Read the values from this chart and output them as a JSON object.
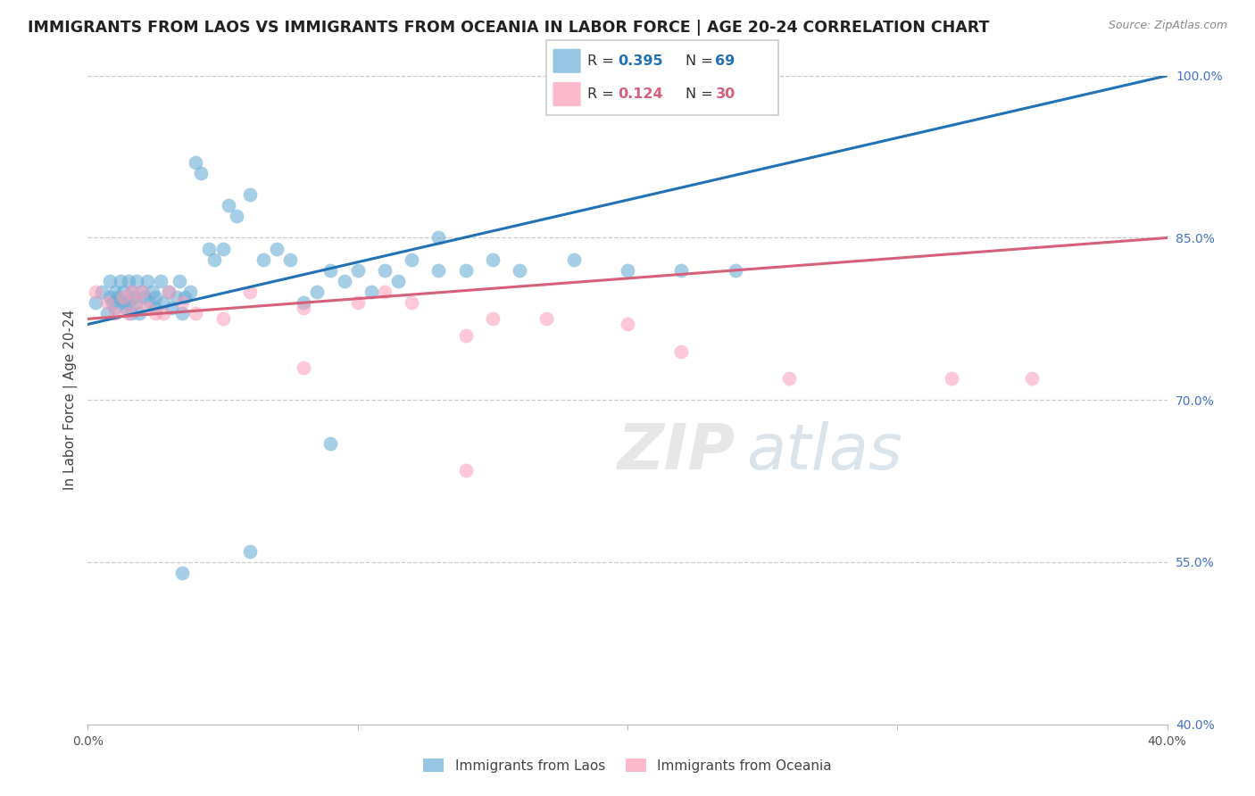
{
  "title": "IMMIGRANTS FROM LAOS VS IMMIGRANTS FROM OCEANIA IN LABOR FORCE | AGE 20-24 CORRELATION CHART",
  "source": "Source: ZipAtlas.com",
  "ylabel": "In Labor Force | Age 20-24",
  "xlim": [
    0.0,
    0.4
  ],
  "ylim": [
    0.4,
    1.0
  ],
  "yticks": [
    0.4,
    0.55,
    0.7,
    0.85,
    1.0
  ],
  "xticks": [
    0.0,
    0.1,
    0.2,
    0.3,
    0.4
  ],
  "xtick_labels": [
    "0.0%",
    "",
    "",
    "",
    "40.0%"
  ],
  "laos_R": 0.395,
  "laos_N": 69,
  "oceania_R": 0.124,
  "oceania_N": 30,
  "laos_color": "#6baed6",
  "oceania_color": "#fc9cb7",
  "laos_line_color": "#2171b5",
  "oceania_line_color": "#d6607a",
  "background_color": "#ffffff",
  "grid_color": "#cccccc",
  "laos_x": [
    0.003,
    0.005,
    0.007,
    0.008,
    0.008,
    0.009,
    0.01,
    0.01,
    0.011,
    0.012,
    0.013,
    0.013,
    0.014,
    0.015,
    0.015,
    0.016,
    0.016,
    0.017,
    0.018,
    0.018,
    0.019,
    0.02,
    0.021,
    0.022,
    0.023,
    0.024,
    0.025,
    0.025,
    0.027,
    0.028,
    0.03,
    0.031,
    0.033,
    0.034,
    0.035,
    0.036,
    0.038,
    0.04,
    0.042,
    0.045,
    0.047,
    0.05,
    0.052,
    0.055,
    0.06,
    0.065,
    0.07,
    0.075,
    0.08,
    0.085,
    0.09,
    0.095,
    0.1,
    0.105,
    0.11,
    0.115,
    0.12,
    0.13,
    0.14,
    0.15,
    0.16,
    0.18,
    0.2,
    0.22,
    0.24,
    0.13,
    0.09,
    0.06,
    0.035
  ],
  "laos_y": [
    0.79,
    0.8,
    0.78,
    0.795,
    0.81,
    0.79,
    0.8,
    0.785,
    0.795,
    0.81,
    0.79,
    0.8,
    0.785,
    0.81,
    0.79,
    0.8,
    0.78,
    0.795,
    0.81,
    0.79,
    0.78,
    0.8,
    0.795,
    0.81,
    0.79,
    0.8,
    0.785,
    0.795,
    0.81,
    0.79,
    0.8,
    0.785,
    0.795,
    0.81,
    0.78,
    0.795,
    0.8,
    0.92,
    0.91,
    0.84,
    0.83,
    0.84,
    0.88,
    0.87,
    0.89,
    0.83,
    0.84,
    0.83,
    0.79,
    0.8,
    0.82,
    0.81,
    0.82,
    0.8,
    0.82,
    0.81,
    0.83,
    0.82,
    0.82,
    0.83,
    0.82,
    0.83,
    0.82,
    0.82,
    0.82,
    0.85,
    0.66,
    0.56,
    0.54
  ],
  "oceania_x": [
    0.003,
    0.007,
    0.01,
    0.013,
    0.015,
    0.016,
    0.018,
    0.02,
    0.022,
    0.025,
    0.028,
    0.03,
    0.035,
    0.04,
    0.05,
    0.06,
    0.08,
    0.1,
    0.11,
    0.12,
    0.14,
    0.15,
    0.17,
    0.2,
    0.22,
    0.26,
    0.32,
    0.35,
    0.14,
    0.08
  ],
  "oceania_y": [
    0.8,
    0.79,
    0.78,
    0.795,
    0.78,
    0.8,
    0.79,
    0.8,
    0.785,
    0.78,
    0.78,
    0.8,
    0.79,
    0.78,
    0.775,
    0.8,
    0.785,
    0.79,
    0.8,
    0.79,
    0.76,
    0.775,
    0.775,
    0.77,
    0.745,
    0.72,
    0.72,
    0.72,
    0.635,
    0.73
  ]
}
